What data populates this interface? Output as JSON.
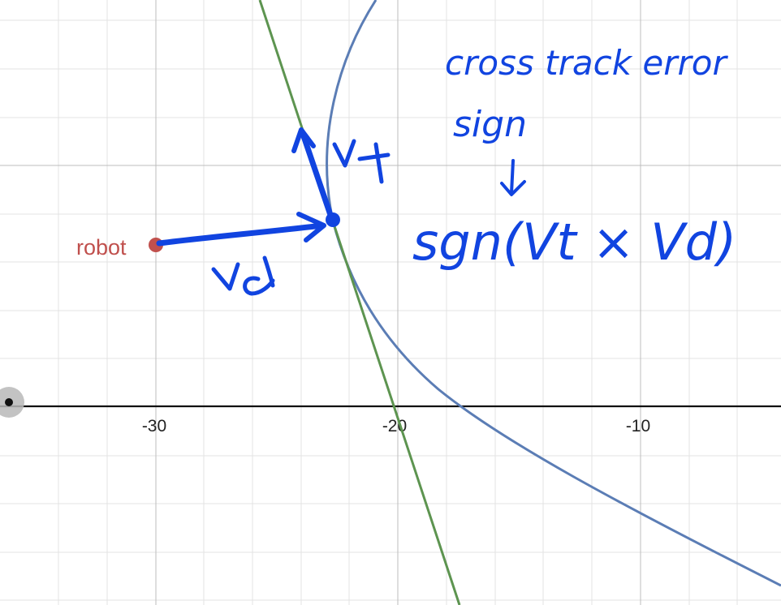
{
  "x_axis": {
    "tick_labels": [
      "-30",
      "-20",
      "-10"
    ]
  },
  "robot": {
    "label": "robot",
    "color": "#c0504d"
  },
  "curves": {
    "path_curve_color": "#5b7db5",
    "tangent_line_color": "#5d9450"
  },
  "annotations": {
    "color": "#1144e0",
    "vt_label": "Vt",
    "vd_label": "Vd",
    "heading_line1": "cross track error",
    "heading_line2": "sign",
    "arrow": "↓",
    "formula": "sgn(Vt × Vd)"
  }
}
